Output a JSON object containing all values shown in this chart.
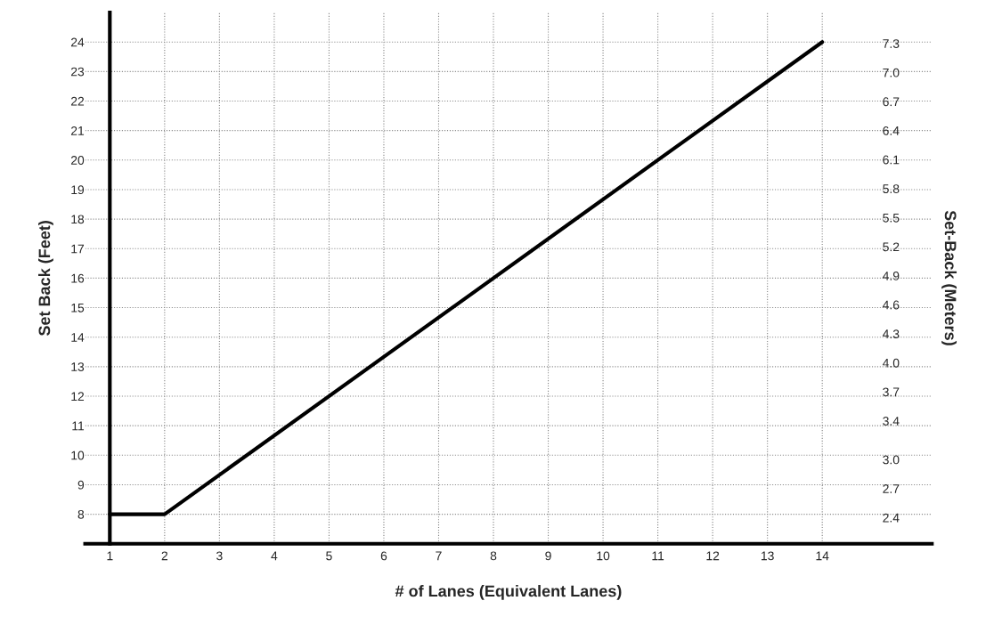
{
  "chart_data": {
    "type": "line",
    "xlabel": "# of Lanes (Equivalent Lanes)",
    "ylabel": "Set Back (Feet)",
    "y2label": "Set-Back (Meters)",
    "x": [
      1,
      2,
      14
    ],
    "series": [
      {
        "color": "#000000",
        "values": [
          8,
          8,
          24
        ]
      }
    ],
    "xlim": [
      0.55,
      16
    ],
    "xticks": [
      1,
      2,
      3,
      4,
      5,
      6,
      7,
      8,
      9,
      10,
      11,
      12,
      13,
      14
    ],
    "ylim": [
      7,
      25
    ],
    "yticks": [
      8,
      9,
      10,
      11,
      12,
      13,
      14,
      15,
      16,
      17,
      18,
      19,
      20,
      21,
      22,
      23,
      24
    ],
    "y2lim": [
      2.13,
      7.62
    ],
    "y2ticks": [
      2.4,
      2.7,
      {
        "value": 3,
        "label": "3.0"
      },
      3.4,
      3.7,
      {
        "value": 4,
        "label": "4.0"
      },
      4.3,
      4.6,
      4.9,
      5.2,
      5.5,
      5.8,
      6.1,
      6.4,
      6.7,
      {
        "value": 7,
        "label": "7.0"
      },
      7.3
    ],
    "grid": true,
    "marker": "none",
    "line_style": "solid"
  }
}
